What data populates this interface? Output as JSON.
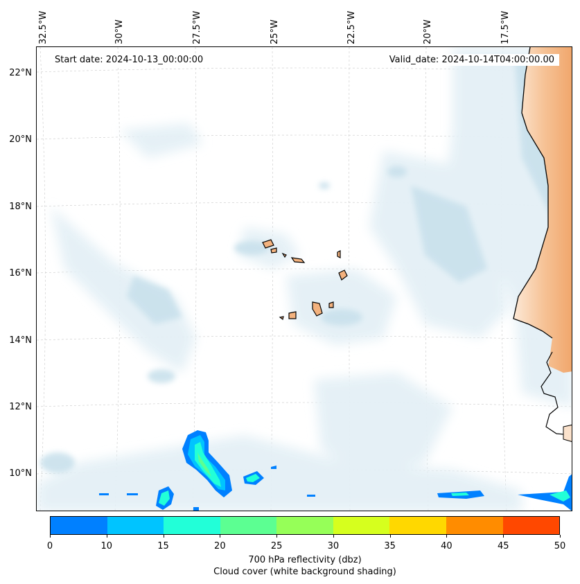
{
  "map": {
    "start_date": "Start date: 2024-10-13_00:00:00",
    "valid_date": "Valid_date: 2024-10-14T04:00:00.00",
    "longitude_labels": [
      "32.5°W",
      "30°W",
      "27.5°W",
      "25°W",
      "22.5°W",
      "20°W",
      "17.5°W"
    ],
    "latitude_labels": [
      "22°N",
      "20°N",
      "18°N",
      "16°N",
      "14°N",
      "12°N",
      "10°N"
    ],
    "colors": {
      "cloud_light": "#e4f0f6",
      "cloud_medium": "#c9e1ec",
      "land": "#f3b27e",
      "land_light": "#fbe2cc",
      "coastline": "#000000"
    }
  },
  "colorbar": {
    "ticks": [
      "0",
      "10",
      "15",
      "20",
      "25",
      "30",
      "35",
      "40",
      "45",
      "50"
    ],
    "colors": [
      "#0080ff",
      "#00c4ff",
      "#22ffd8",
      "#5cff92",
      "#96ff58",
      "#d6ff1e",
      "#ffd800",
      "#ff8c00",
      "#ff4800"
    ],
    "label": "700 hPa reflectivity (dbz)",
    "sublabel": "Cloud cover (white background shading)"
  }
}
